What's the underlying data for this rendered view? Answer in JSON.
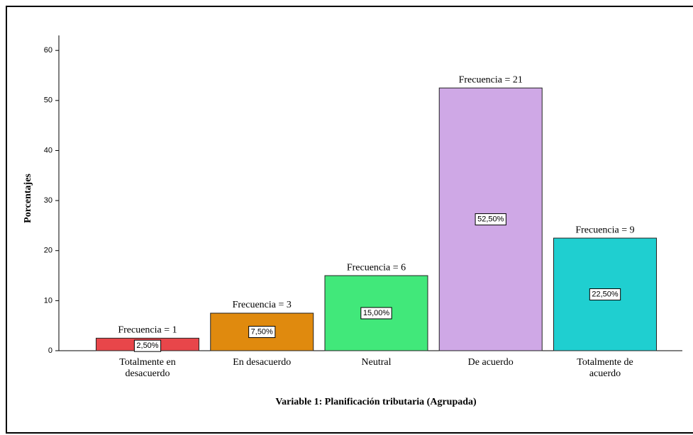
{
  "chart_data": {
    "type": "bar",
    "x_label": "Variable 1: Planificación tributaria (Agrupada)",
    "y_label": "Porcentajes",
    "categories": [
      "Totalmente en desacuerdo",
      "En desacuerdo",
      "Neutral",
      "De acuerdo",
      "Totalmente de acuerdo"
    ],
    "values": [
      2.5,
      7.5,
      15,
      52.5,
      22.5
    ],
    "value_labels": [
      "2,50%",
      "7,50%",
      "15,00%",
      "52,50%",
      "22,50%"
    ],
    "annotations": [
      "Frecuencia = 1",
      "Frecuencia = 3",
      "Frecuencia = 6",
      "Frecuencia = 21",
      "Frecuencia = 9"
    ],
    "colors": [
      "#e8464a",
      "#e08a0e",
      "#41e87a",
      "#cfa8e6",
      "#1fcfd0"
    ],
    "ylim": [
      0,
      63
    ],
    "yticks": [
      0,
      10,
      20,
      30,
      40,
      50,
      60
    ]
  }
}
